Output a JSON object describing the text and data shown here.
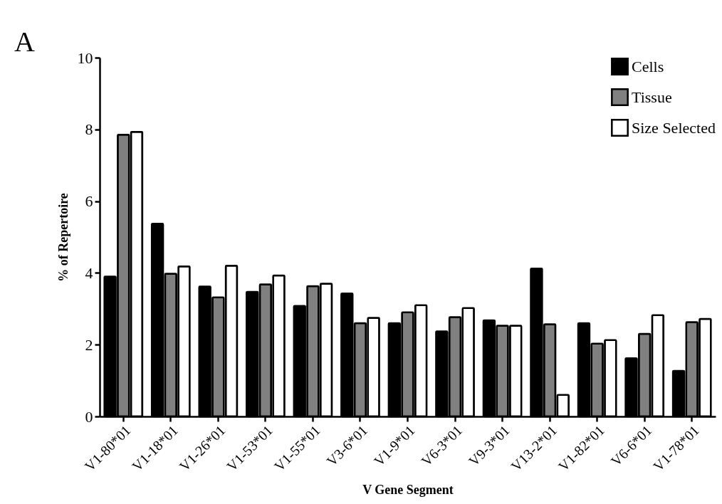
{
  "chart_data": {
    "type": "bar",
    "xlabel": "V Gene Segment",
    "ylabel": "% of Repertoire",
    "annotations": [
      "A"
    ],
    "categories": [
      "V1-80*01",
      "V1-18*01",
      "V1-26*01",
      "V1-53*01",
      "V1-55*01",
      "V3-6*01",
      "V1-9*01",
      "V6-3*01",
      "V9-3*01",
      "V13-2*01",
      "V1-82*01",
      "V6-6*01",
      "V1-78*01"
    ],
    "series": [
      {
        "name": "Cells",
        "color": "#000000",
        "values": [
          3.9,
          5.37,
          3.62,
          3.47,
          3.08,
          3.43,
          2.6,
          2.37,
          2.68,
          4.12,
          2.6,
          1.62,
          1.27
        ]
      },
      {
        "name": "Tissue",
        "color": "#808080",
        "values": [
          7.85,
          3.98,
          3.32,
          3.68,
          3.63,
          2.6,
          2.9,
          2.77,
          2.53,
          2.57,
          2.03,
          2.3,
          2.63
        ]
      },
      {
        "name": "Size Selected",
        "color": "#ffffff",
        "values": [
          7.93,
          4.18,
          4.2,
          3.93,
          3.7,
          2.75,
          3.1,
          3.02,
          2.53,
          0.6,
          2.13,
          2.82,
          2.72
        ]
      }
    ],
    "ylim": [
      0,
      10
    ],
    "yticks": [
      0,
      2,
      4,
      6,
      8,
      10
    ],
    "grid": false,
    "legend": "top right"
  }
}
